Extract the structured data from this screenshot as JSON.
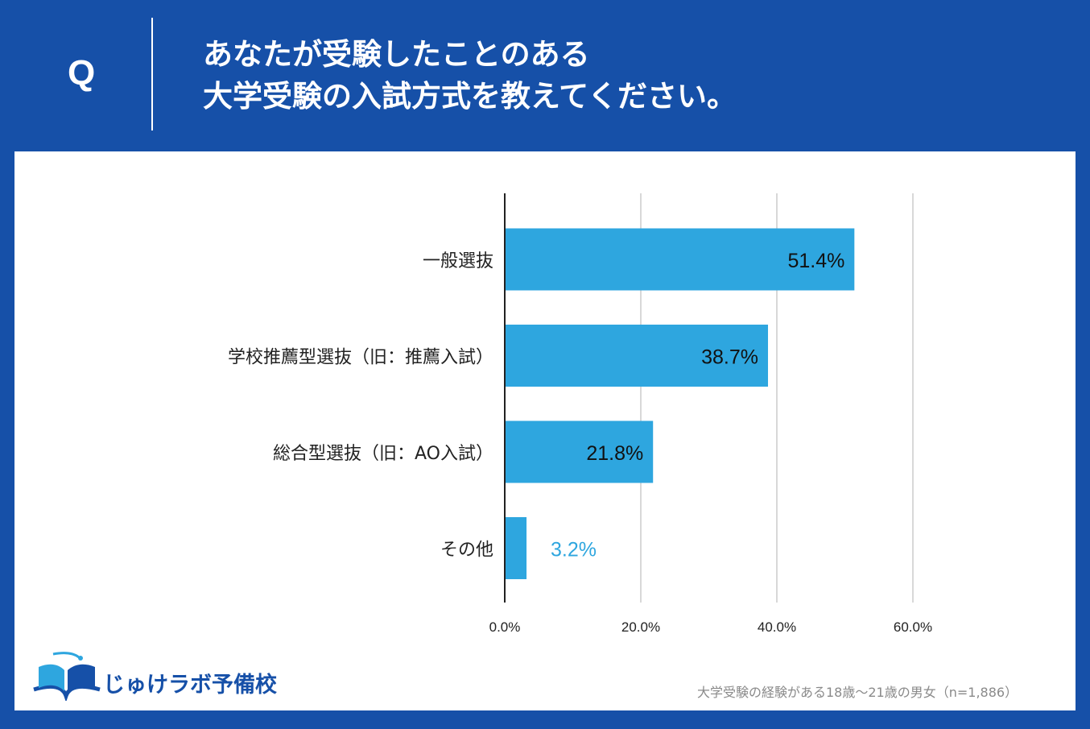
{
  "header": {
    "q_label": "Q",
    "title_line1": "あなたが受験したことのある",
    "title_line2": "大学受験の入試方式を教えてください。"
  },
  "colors": {
    "background": "#1650a8",
    "bar": "#2ea6df",
    "grid": "#cccccc",
    "axis": "#222222",
    "label_outside": "#2ea6df"
  },
  "chart_data": {
    "type": "bar",
    "orientation": "horizontal",
    "categories": [
      "一般選抜",
      "学校推薦型選抜（旧：推薦入試）",
      "総合型選抜（旧：AO入試）",
      "その他"
    ],
    "values": [
      51.4,
      38.7,
      21.8,
      3.2
    ],
    "value_labels": [
      "51.4%",
      "38.7%",
      "21.8%",
      "3.2%"
    ],
    "x_ticks": [
      "0.0%",
      "20.0%",
      "40.0%",
      "60.0%"
    ],
    "x_tick_values": [
      0,
      20,
      40,
      60
    ],
    "xlim": [
      0,
      60
    ],
    "grid": true,
    "title": "",
    "xlabel": "",
    "ylabel": ""
  },
  "footer": {
    "brand": "じゅけラボ予備校",
    "note": "大学受験の経験がある18歳〜21歳の男女（n=1,886）"
  }
}
